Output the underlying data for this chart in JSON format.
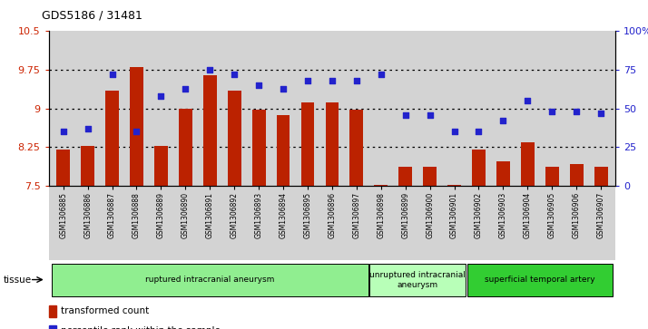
{
  "title": "GDS5186 / 31481",
  "samples": [
    "GSM1306885",
    "GSM1306886",
    "GSM1306887",
    "GSM1306888",
    "GSM1306889",
    "GSM1306890",
    "GSM1306891",
    "GSM1306892",
    "GSM1306893",
    "GSM1306894",
    "GSM1306895",
    "GSM1306896",
    "GSM1306897",
    "GSM1306898",
    "GSM1306899",
    "GSM1306900",
    "GSM1306901",
    "GSM1306902",
    "GSM1306903",
    "GSM1306904",
    "GSM1306905",
    "GSM1306906",
    "GSM1306907"
  ],
  "transformed_count": [
    8.2,
    8.27,
    9.35,
    9.8,
    8.27,
    9.0,
    9.65,
    9.35,
    8.97,
    8.88,
    9.12,
    9.12,
    8.97,
    7.52,
    7.87,
    7.87,
    7.52,
    8.2,
    7.97,
    8.35,
    7.87,
    7.92,
    7.87
  ],
  "percentile_rank": [
    35,
    37,
    72,
    35,
    58,
    63,
    75,
    72,
    65,
    63,
    68,
    68,
    68,
    72,
    46,
    46,
    35,
    35,
    42,
    55,
    48,
    48,
    47
  ],
  "ylim_left": [
    7.5,
    10.5
  ],
  "ylim_right": [
    0,
    100
  ],
  "yticks_left": [
    7.5,
    8.25,
    9.0,
    9.75,
    10.5
  ],
  "yticks_right": [
    0,
    25,
    50,
    75,
    100
  ],
  "ytick_labels_left": [
    "7.5",
    "8.25",
    "9",
    "9.75",
    "10.5"
  ],
  "ytick_labels_right": [
    "0",
    "25",
    "50",
    "75",
    "100%"
  ],
  "hgrid_at": [
    8.25,
    9.0,
    9.75
  ],
  "groups": [
    {
      "label": "ruptured intracranial aneurysm",
      "start": 0,
      "end": 13,
      "color": "#90ee90"
    },
    {
      "label": "unruptured intracranial\naneurysm",
      "start": 13,
      "end": 17,
      "color": "#b8ffb8"
    },
    {
      "label": "superficial temporal artery",
      "start": 17,
      "end": 23,
      "color": "#32cd32"
    }
  ],
  "bar_color": "#bb2200",
  "dot_color": "#2222cc",
  "plot_bg": "#d3d3d3",
  "tissue_label": "tissue"
}
